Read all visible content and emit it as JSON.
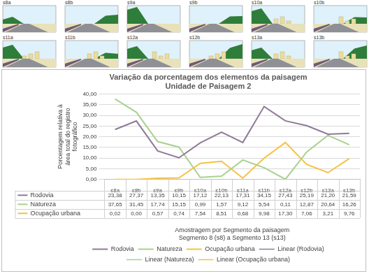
{
  "thumbnails": [
    "s8a",
    "s8b",
    "s9a",
    "s9b",
    "s10a",
    "s10b",
    "s11a",
    "s11b",
    "s12a",
    "s12b",
    "s13a",
    "s13b"
  ],
  "chart_data": {
    "type": "line",
    "title": [
      "Variação da porcentagem dos elementos da paisagem",
      "Unidade de Paisagem 2"
    ],
    "xlabel": [
      "Amostragem por Segmento da paisagem",
      "Segmento 8 (s8) a Segmento 13 (s13)"
    ],
    "ylabel": "Porcentagem relativa à área total do registro fotográfico",
    "categories": [
      "s8a",
      "s8b",
      "s9a",
      "s9b",
      "s10a",
      "s10b",
      "s11a",
      "s11b",
      "s12a",
      "s12b",
      "s13a",
      "s13b"
    ],
    "series": [
      {
        "name": "Rodovia",
        "color": "#8e7a96",
        "values": [
          23.38,
          27.37,
          13.35,
          10.15,
          17.12,
          22.13,
          17.31,
          34.15,
          27.43,
          25.19,
          21.2,
          21.59
        ],
        "value_labels": [
          "23,38",
          "27,37",
          "13,35",
          "10,15",
          "17,12",
          "22,13",
          "17,31",
          "34,15",
          "27,43",
          "25,19",
          "21,20",
          "21,59"
        ]
      },
      {
        "name": "Natureza",
        "color": "#a9d18e",
        "values": [
          37.65,
          31.45,
          17.74,
          15.15,
          0.99,
          1.57,
          9.12,
          5.54,
          0.11,
          12.87,
          20.64,
          16.26
        ],
        "value_labels": [
          "37,65",
          "31,45",
          "17,74",
          "15,15",
          "0,99",
          "1,57",
          "9,12",
          "5,54",
          "0,11",
          "12,87",
          "20,64",
          "16,26"
        ]
      },
      {
        "name": "Ocupação urbana",
        "color": "#f5c242",
        "values": [
          0.02,
          0.0,
          0.57,
          0.74,
          7.54,
          8.51,
          0.68,
          9.98,
          17.3,
          7.06,
          3.21,
          9.76
        ],
        "value_labels": [
          "0,02",
          "0,00",
          "0,57",
          "0,74",
          "7,54",
          "8,51",
          "0,68",
          "9,98",
          "17,30",
          "7,06",
          "3,21",
          "9,76"
        ]
      }
    ],
    "trendlines": [
      {
        "name": "Linear (Rodovia)",
        "color": "#8e7a96",
        "line_style": "dotted"
      },
      {
        "name": "Linear (Natureza)",
        "color": "#a9d18e",
        "line_style": "dotted"
      },
      {
        "name": "Linear (Ocupação urbana)",
        "color": "#f5c242",
        "line_style": "dotted"
      }
    ],
    "ylim": [
      0,
      40
    ],
    "yticks": [
      {
        "value": 0,
        "label": "0,00"
      },
      {
        "value": 5,
        "label": "5,00"
      },
      {
        "value": 10,
        "label": "10,00"
      },
      {
        "value": 15,
        "label": "15,00"
      },
      {
        "value": 20,
        "label": "20,00"
      },
      {
        "value": 25,
        "label": "25,00"
      },
      {
        "value": 30,
        "label": "30,00"
      },
      {
        "value": 35,
        "label": "35,00"
      },
      {
        "value": 40,
        "label": "40,00"
      }
    ],
    "grid": true,
    "legend": "bottom"
  }
}
